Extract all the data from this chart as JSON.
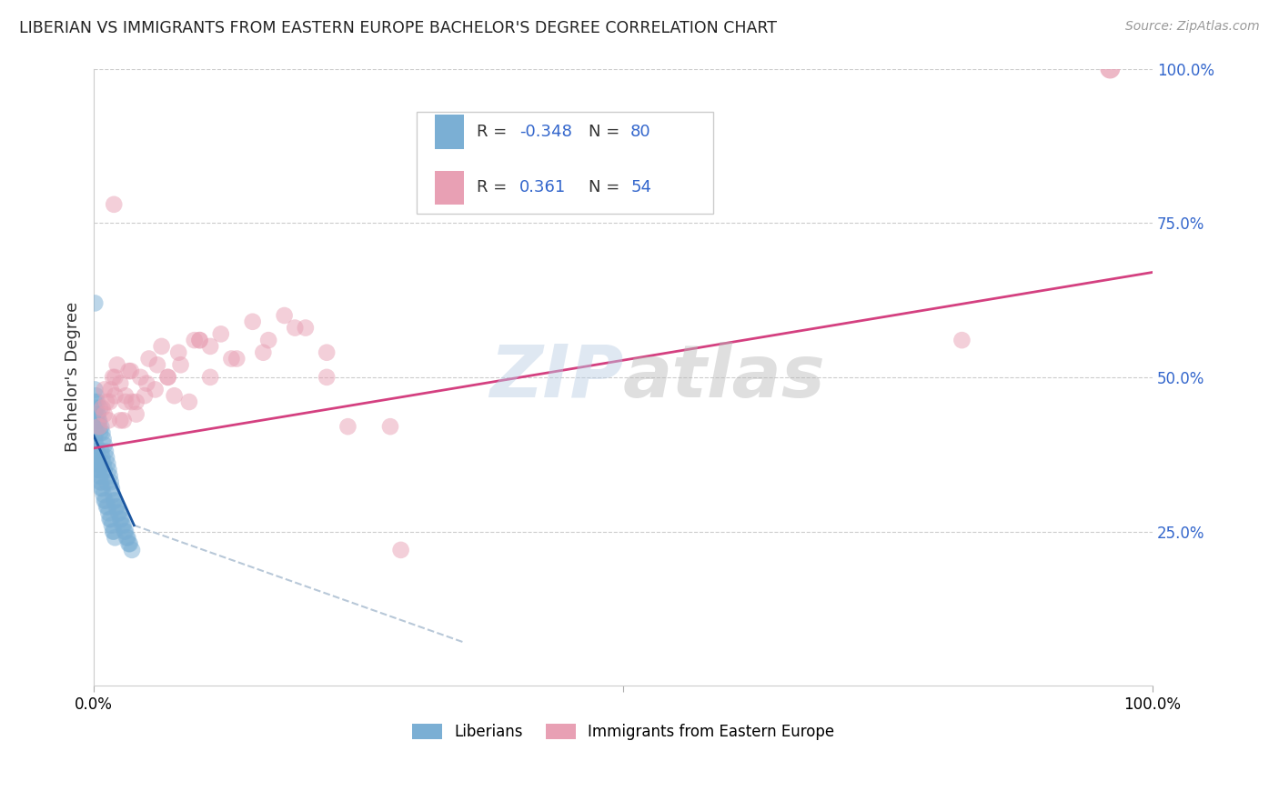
{
  "title": "LIBERIAN VS IMMIGRANTS FROM EASTERN EUROPE BACHELOR'S DEGREE CORRELATION CHART",
  "source": "Source: ZipAtlas.com",
  "ylabel": "Bachelor's Degree",
  "xlim": [
    0,
    1
  ],
  "ylim": [
    0,
    1
  ],
  "y_tick_positions": [
    0.25,
    0.5,
    0.75,
    1.0
  ],
  "watermark": "ZIPatlas",
  "liberian_color": "#7bafd4",
  "eastern_europe_color": "#e8a0b4",
  "liberian_line_color": "#1a56a0",
  "eastern_europe_line_color": "#d44080",
  "dashed_line_color": "#b8c8d8",
  "background_color": "#ffffff",
  "grid_color": "#cccccc",
  "blue_label": "Liberians",
  "pink_label": "Immigrants from Eastern Europe",
  "lib_R": "-0.348",
  "lib_N": "80",
  "ee_R": "0.361",
  "ee_N": "54",
  "liberian_x": [
    0.001,
    0.001,
    0.001,
    0.001,
    0.001,
    0.002,
    0.002,
    0.002,
    0.002,
    0.002,
    0.003,
    0.003,
    0.003,
    0.003,
    0.004,
    0.004,
    0.004,
    0.004,
    0.005,
    0.005,
    0.005,
    0.005,
    0.006,
    0.006,
    0.006,
    0.007,
    0.007,
    0.007,
    0.008,
    0.008,
    0.009,
    0.009,
    0.01,
    0.01,
    0.011,
    0.012,
    0.012,
    0.013,
    0.014,
    0.015,
    0.016,
    0.017,
    0.018,
    0.019,
    0.02,
    0.021,
    0.022,
    0.023,
    0.024,
    0.025,
    0.026,
    0.027,
    0.028,
    0.029,
    0.03,
    0.031,
    0.032,
    0.033,
    0.034,
    0.036,
    0.001,
    0.002,
    0.003,
    0.004,
    0.005,
    0.006,
    0.007,
    0.008,
    0.009,
    0.01,
    0.011,
    0.012,
    0.013,
    0.014,
    0.015,
    0.016,
    0.017,
    0.018,
    0.019,
    0.02
  ],
  "liberian_y": [
    0.48,
    0.46,
    0.44,
    0.42,
    0.4,
    0.47,
    0.45,
    0.43,
    0.41,
    0.39,
    0.46,
    0.44,
    0.38,
    0.36,
    0.44,
    0.43,
    0.37,
    0.35,
    0.43,
    0.42,
    0.36,
    0.34,
    0.45,
    0.41,
    0.33,
    0.42,
    0.38,
    0.32,
    0.41,
    0.37,
    0.4,
    0.36,
    0.39,
    0.35,
    0.38,
    0.37,
    0.33,
    0.36,
    0.35,
    0.34,
    0.33,
    0.32,
    0.31,
    0.3,
    0.3,
    0.29,
    0.29,
    0.28,
    0.28,
    0.27,
    0.27,
    0.26,
    0.26,
    0.25,
    0.25,
    0.24,
    0.24,
    0.23,
    0.23,
    0.22,
    0.38,
    0.37,
    0.36,
    0.35,
    0.35,
    0.34,
    0.33,
    0.32,
    0.31,
    0.3,
    0.3,
    0.29,
    0.29,
    0.28,
    0.27,
    0.27,
    0.26,
    0.25,
    0.25,
    0.24
  ],
  "liberian_outlier_x": [
    0.001
  ],
  "liberian_outlier_y": [
    0.62
  ],
  "eastern_europe_x": [
    0.005,
    0.008,
    0.01,
    0.012,
    0.014,
    0.016,
    0.018,
    0.02,
    0.022,
    0.025,
    0.028,
    0.03,
    0.033,
    0.036,
    0.04,
    0.044,
    0.048,
    0.052,
    0.058,
    0.064,
    0.07,
    0.076,
    0.082,
    0.09,
    0.1,
    0.11,
    0.12,
    0.135,
    0.15,
    0.165,
    0.18,
    0.2,
    0.22,
    0.24,
    0.01,
    0.015,
    0.02,
    0.025,
    0.03,
    0.035,
    0.04,
    0.05,
    0.06,
    0.07,
    0.08,
    0.095,
    0.11,
    0.13,
    0.16,
    0.19,
    0.22,
    0.28
  ],
  "eastern_europe_y": [
    0.42,
    0.45,
    0.44,
    0.46,
    0.43,
    0.48,
    0.5,
    0.47,
    0.52,
    0.49,
    0.43,
    0.46,
    0.51,
    0.46,
    0.44,
    0.5,
    0.47,
    0.53,
    0.48,
    0.55,
    0.5,
    0.47,
    0.52,
    0.46,
    0.56,
    0.55,
    0.57,
    0.53,
    0.59,
    0.56,
    0.6,
    0.58,
    0.54,
    0.42,
    0.48,
    0.46,
    0.5,
    0.43,
    0.47,
    0.51,
    0.46,
    0.49,
    0.52,
    0.5,
    0.54,
    0.56,
    0.5,
    0.53,
    0.54,
    0.58,
    0.5,
    0.42
  ],
  "eastern_europe_outlier1_x": [
    0.019
  ],
  "eastern_europe_outlier1_y": [
    0.78
  ],
  "eastern_europe_outlier2_x": [
    0.1
  ],
  "eastern_europe_outlier2_y": [
    0.56
  ],
  "eastern_europe_outlier3_x": [
    0.29
  ],
  "eastern_europe_outlier3_y": [
    0.22
  ],
  "eastern_europe_outlier4_x": [
    0.82
  ],
  "eastern_europe_outlier4_y": [
    0.56
  ],
  "eastern_europe_outlier5_x": [
    0.96
  ],
  "eastern_europe_outlier5_y": [
    1.0
  ],
  "blue_line_x0": 0.0,
  "blue_line_y0": 0.405,
  "blue_line_x1": 0.038,
  "blue_line_y1": 0.26,
  "pink_line_x0": 0.0,
  "pink_line_y0": 0.385,
  "pink_line_x1": 1.0,
  "pink_line_y1": 0.67,
  "dash_line_x0": 0.038,
  "dash_line_x1": 0.35,
  "dash_line_y0": 0.26,
  "dash_line_y1": 0.07
}
